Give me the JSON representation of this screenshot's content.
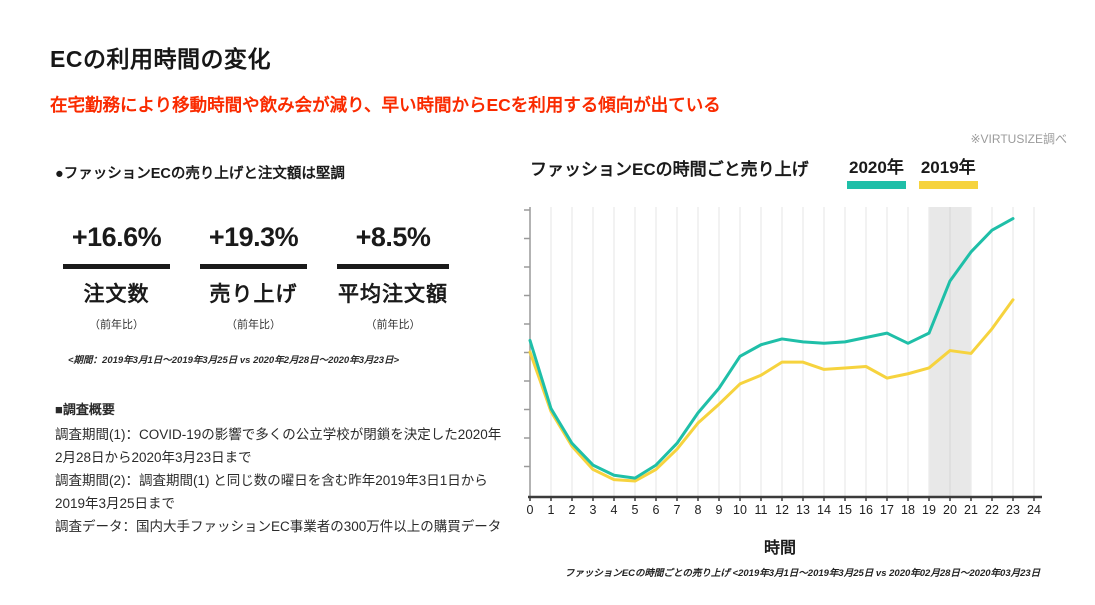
{
  "page": {
    "title": "ECの利用時間の変化",
    "subtitle": "在宅勤務により移動時間や飲み会が減り、早い時間からECを利用する傾向が出ている",
    "source_note": "※VIRTUSIZE調べ"
  },
  "left_panel": {
    "heading": "●ファッションECの売り上げと注文額は堅調",
    "stats": [
      {
        "value": "+16.6%",
        "label": "注文数",
        "sublabel": "（前年比）"
      },
      {
        "value": "+19.3%",
        "label": "売り上げ",
        "sublabel": "（前年比）"
      },
      {
        "value": "+8.5%",
        "label": "平均注文額",
        "sublabel": "（前年比）"
      }
    ],
    "period_note": "<期間：2019年3月1日～2019年3月25日 vs 2020年2月28日～2020年3月23日>",
    "survey": {
      "heading": "■調査概要",
      "lines": [
        "調査期間(1)：COVID-19の影響で多くの公立学校が閉鎖を決定した2020年2月28日から2020年3月23日まで",
        "調査期間(2)：調査期間(1) と同じ数の曜日を含む昨年2019年3日1日から2019年3月25日まで",
        "調査データ：国内大手ファッションEC事業者の300万件以上の購買データ"
      ]
    }
  },
  "chart": {
    "title": "ファッションECの時間ごと売り上げ",
    "xlabel": "時間",
    "caption": "ファッションECの時間ごとの売り上げ <2019年3月1日～2019年3月25日 vs 2020年02月28日～2020年03月23日",
    "legend": [
      {
        "label": "2020年",
        "color": "#1fbfa8"
      },
      {
        "label": "2019年",
        "color": "#f6d33e"
      }
    ]
  },
  "chart_data": {
    "type": "line",
    "title": "ファッションECの時間ごと売り上げ",
    "xlabel": "時間",
    "ylabel": "",
    "x": [
      0,
      1,
      2,
      3,
      4,
      5,
      6,
      7,
      8,
      9,
      10,
      11,
      12,
      13,
      14,
      15,
      16,
      17,
      18,
      19,
      20,
      21,
      22,
      23
    ],
    "x_ticks": [
      0,
      1,
      2,
      3,
      4,
      5,
      6,
      7,
      8,
      9,
      10,
      11,
      12,
      13,
      14,
      15,
      16,
      17,
      18,
      19,
      20,
      21,
      22,
      23,
      24
    ],
    "xlim": [
      0,
      24
    ],
    "ylim": [
      0,
      100
    ],
    "y_axis_labels": "none (unlabeled relative sales index, 10 unlabeled ticks)",
    "grid": "vertical gridlines at every hour",
    "legend_position": "top-right above plot",
    "highlight_band": {
      "from": 19,
      "to": 21,
      "color": "#e8e8e8"
    },
    "series": [
      {
        "name": "2020年",
        "color": "#1fbfa8",
        "values": [
          54,
          30.5,
          18.5,
          11,
          7.5,
          6.5,
          11,
          18.5,
          29,
          37.5,
          48.5,
          52.5,
          54.5,
          53.5,
          53,
          53.5,
          55,
          56.5,
          53,
          56.5,
          74.5,
          84.5,
          92,
          96
        ]
      },
      {
        "name": "2019年",
        "color": "#f6d33e",
        "values": [
          50,
          29.5,
          17.5,
          9.5,
          6,
          5.5,
          9.5,
          16.5,
          25.5,
          32,
          39,
          42,
          46.5,
          46.5,
          44,
          44.5,
          45,
          41,
          42.5,
          44.5,
          50.5,
          49.5,
          58,
          68
        ]
      }
    ],
    "colors": {
      "grid": "#ececec",
      "grid_in_band": "#dadada",
      "x_axis": "#3b3b3b",
      "y_axis": "#9a9a9a",
      "band": "#e8e8e8"
    }
  }
}
